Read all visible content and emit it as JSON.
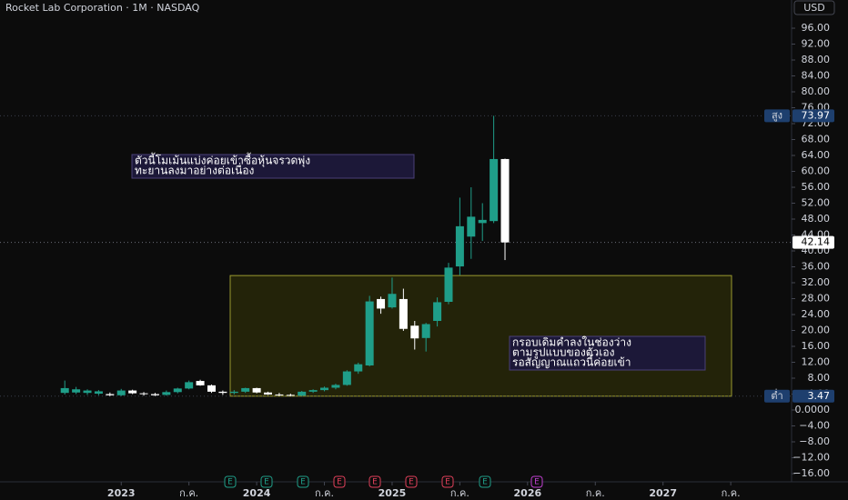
{
  "chart_data": {
    "type": "candlestick",
    "title": "Rocket Lab Corporation · 1M · NASDAQ",
    "currency": "USD",
    "x": [
      -5,
      -4,
      -3,
      -2,
      -1,
      0,
      1,
      2,
      3,
      4,
      5,
      6,
      7,
      8,
      9,
      10,
      11,
      12,
      13,
      14,
      15,
      16,
      17,
      18,
      19,
      20,
      21,
      22,
      23,
      24,
      25,
      26,
      27,
      28,
      29,
      30,
      31,
      32,
      33,
      34
    ],
    "open": [
      4.3,
      4.4,
      4.3,
      4.1,
      4.0,
      3.7,
      4.9,
      4.2,
      4.0,
      3.8,
      4.5,
      5.4,
      7.3,
      6.2,
      4.6,
      4.3,
      4.6,
      5.5,
      4.4,
      3.9,
      3.8,
      3.6,
      4.6,
      5.0,
      5.6,
      6.3,
      9.7,
      11.2,
      27.9,
      25.8,
      27.9,
      21.2,
      18.1,
      22.4,
      27.2,
      36.1,
      43.6,
      47.0,
      47.5,
      63.1
    ],
    "high": [
      7.4,
      5.8,
      5.2,
      5.0,
      4.4,
      5.3,
      5.1,
      4.5,
      4.3,
      4.9,
      5.6,
      7.4,
      7.6,
      6.4,
      4.9,
      5.0,
      5.6,
      5.6,
      4.6,
      4.3,
      4.1,
      4.8,
      5.2,
      5.9,
      6.6,
      10.0,
      11.9,
      28.7,
      28.5,
      33.3,
      30.5,
      22.4,
      21.9,
      28.3,
      37.0,
      53.4,
      56.0,
      52.0,
      73.97,
      63.2
    ],
    "low": [
      3.9,
      4.0,
      3.8,
      3.7,
      3.5,
      3.5,
      4.0,
      3.6,
      3.5,
      3.6,
      4.2,
      5.2,
      6.1,
      4.3,
      3.8,
      3.9,
      4.3,
      4.2,
      3.8,
      3.5,
      3.47,
      3.5,
      4.3,
      4.7,
      5.2,
      6.1,
      9.1,
      11.0,
      24.2,
      25.5,
      19.9,
      15.2,
      14.7,
      21.0,
      26.6,
      33.9,
      38.0,
      42.5,
      47.0,
      37.7
    ],
    "close": [
      5.5,
      5.2,
      4.9,
      4.7,
      3.7,
      4.9,
      4.2,
      4.0,
      3.7,
      4.5,
      5.4,
      7.0,
      6.2,
      4.6,
      4.3,
      4.6,
      5.5,
      4.4,
      3.9,
      3.8,
      3.6,
      4.6,
      5.0,
      5.6,
      6.3,
      9.7,
      11.5,
      27.3,
      25.5,
      29.2,
      20.4,
      18.0,
      21.6,
      27.1,
      35.8,
      46.2,
      48.6,
      47.8,
      63.1,
      42.14
    ],
    "up_color": "#1f9e89",
    "down_color": "#ffffff",
    "xlim": [
      -10.74,
      59.39
    ],
    "xticks": [
      {
        "value": 0,
        "label": "2023"
      },
      {
        "value": 6,
        "label": "ก.ค."
      },
      {
        "value": 12,
        "label": "2024"
      },
      {
        "value": 18,
        "label": "ก.ค."
      },
      {
        "value": 24,
        "label": "2025"
      },
      {
        "value": 30,
        "label": "ก.ค."
      },
      {
        "value": 36,
        "label": "2026"
      },
      {
        "value": 42,
        "label": "ก.ค."
      },
      {
        "value": 48,
        "label": "2027"
      },
      {
        "value": 54,
        "label": "ก.ค."
      }
    ],
    "ylim": [
      -18.06,
      103.09
    ],
    "yticks": [
      {
        "value": 96,
        "label": "96.00"
      },
      {
        "value": 92,
        "label": "92.00"
      },
      {
        "value": 88,
        "label": "88.00"
      },
      {
        "value": 84,
        "label": "84.00"
      },
      {
        "value": 80,
        "label": "80.00"
      },
      {
        "value": 76,
        "label": "76.00"
      },
      {
        "value": 72,
        "label": "72.00"
      },
      {
        "value": 68,
        "label": "68.00"
      },
      {
        "value": 64,
        "label": "64.00"
      },
      {
        "value": 60,
        "label": "60.00"
      },
      {
        "value": 56,
        "label": "56.00"
      },
      {
        "value": 52,
        "label": "52.00"
      },
      {
        "value": 48,
        "label": "48.00"
      },
      {
        "value": 44,
        "label": "44.00"
      },
      {
        "value": 40,
        "label": "40.00"
      },
      {
        "value": 36,
        "label": "36.00"
      },
      {
        "value": 32,
        "label": "32.00"
      },
      {
        "value": 28,
        "label": "28.00"
      },
      {
        "value": 24,
        "label": "24.00"
      },
      {
        "value": 20,
        "label": "20.00"
      },
      {
        "value": 16,
        "label": "16.00"
      },
      {
        "value": 12,
        "label": "12.00"
      },
      {
        "value": 8,
        "label": "8.00"
      },
      {
        "value": 4,
        "label": "4.00"
      },
      {
        "value": 0,
        "label": "0.0000"
      },
      {
        "value": -4,
        "label": "−4.00"
      },
      {
        "value": -8,
        "label": "−8.00"
      },
      {
        "value": -12,
        "label": "−12.00"
      },
      {
        "value": -16,
        "label": "−16.00"
      }
    ],
    "high_marker": {
      "label": "สูง",
      "value": 73.97
    },
    "low_marker": {
      "label": "ต่ำ",
      "value": 3.47
    },
    "last_price": 42.14,
    "range_box": {
      "top": 33.8,
      "bottom": 3.47
    },
    "earnings_label": "E",
    "notes": [
      {
        "lines": [
          "ตัวนี้โมเม้นแบ่งค่อยเข้าซื้อหุ้นจรวดพุ่ง",
          "ทะยานลงมาอย่างต่อเนื่อง"
        ]
      },
      {
        "lines": [
          "กรอบเดิมคำลงในช่องว่าง",
          "ตามรูปแบบของตัวเอง",
          "รอสัญญาณแถวนี้ค่อยเข้า"
        ]
      }
    ]
  }
}
